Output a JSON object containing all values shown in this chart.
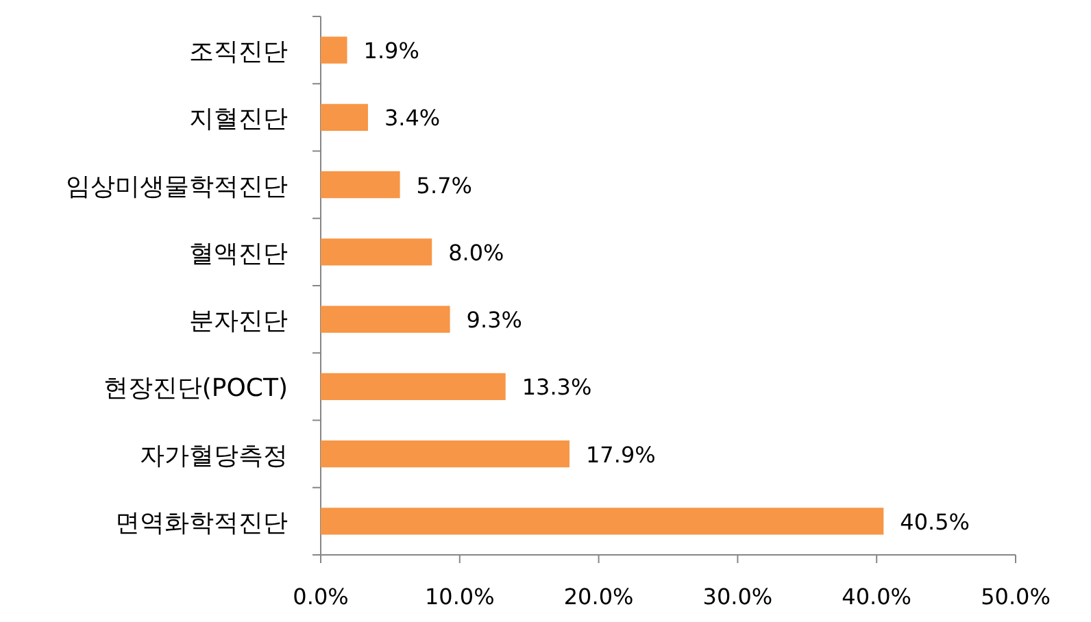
{
  "chart_data": {
    "type": "bar",
    "orientation": "horizontal",
    "categories": [
      "조직진단",
      "지혈진단",
      "임상미생물학적진단",
      "혈액진단",
      "분자진단",
      "현장진단(POCT)",
      "자가혈당측정",
      "면역화학적진단"
    ],
    "values": [
      1.9,
      3.4,
      5.7,
      8.0,
      9.3,
      13.3,
      17.9,
      40.5
    ],
    "value_labels": [
      "1.9%",
      "3.4%",
      "5.7%",
      "8.0%",
      "9.3%",
      "13.3%",
      "17.9%",
      "40.5%"
    ],
    "color": "#f79646",
    "xlim": [
      0,
      50
    ],
    "xticks": [
      {
        "value": 0,
        "label": "0.0%"
      },
      {
        "value": 10,
        "label": "10.0%"
      },
      {
        "value": 20,
        "label": "20.0%"
      },
      {
        "value": 30,
        "label": "30.0%"
      },
      {
        "value": 40,
        "label": "40.0%"
      },
      {
        "value": 50,
        "label": "50.0%"
      }
    ],
    "grid": false
  }
}
